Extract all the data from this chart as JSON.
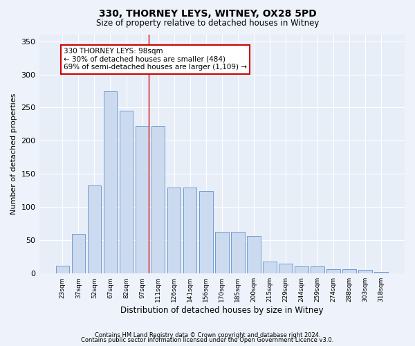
{
  "title1": "330, THORNEY LEYS, WITNEY, OX28 5PD",
  "title2": "Size of property relative to detached houses in Witney",
  "xlabel": "Distribution of detached houses by size in Witney",
  "ylabel": "Number of detached properties",
  "bar_labels": [
    "23sqm",
    "37sqm",
    "52sqm",
    "67sqm",
    "82sqm",
    "97sqm",
    "111sqm",
    "126sqm",
    "141sqm",
    "156sqm",
    "170sqm",
    "185sqm",
    "200sqm",
    "215sqm",
    "229sqm",
    "244sqm",
    "259sqm",
    "274sqm",
    "288sqm",
    "303sqm",
    "318sqm"
  ],
  "bar_values": [
    12,
    60,
    133,
    275,
    245,
    222,
    222,
    130,
    130,
    124,
    63,
    63,
    57,
    18,
    15,
    11,
    11,
    6,
    6,
    5,
    2
  ],
  "bar_color": "#ccdaf0",
  "bar_edge_color": "#6090c8",
  "vline_color": "#cc0000",
  "vline_x_index": 5,
  "annotation_text": "330 THORNEY LEYS: 98sqm\n← 30% of detached houses are smaller (484)\n69% of semi-detached houses are larger (1,109) →",
  "annotation_box_color": "#ffffff",
  "annotation_box_edge": "#cc0000",
  "ylim": [
    0,
    360
  ],
  "yticks": [
    0,
    50,
    100,
    150,
    200,
    250,
    300,
    350
  ],
  "footnote1": "Contains HM Land Registry data © Crown copyright and database right 2024.",
  "footnote2": "Contains public sector information licensed under the Open Government Licence v3.0.",
  "bg_color": "#eef2fa",
  "plot_bg_color": "#e8eef8"
}
